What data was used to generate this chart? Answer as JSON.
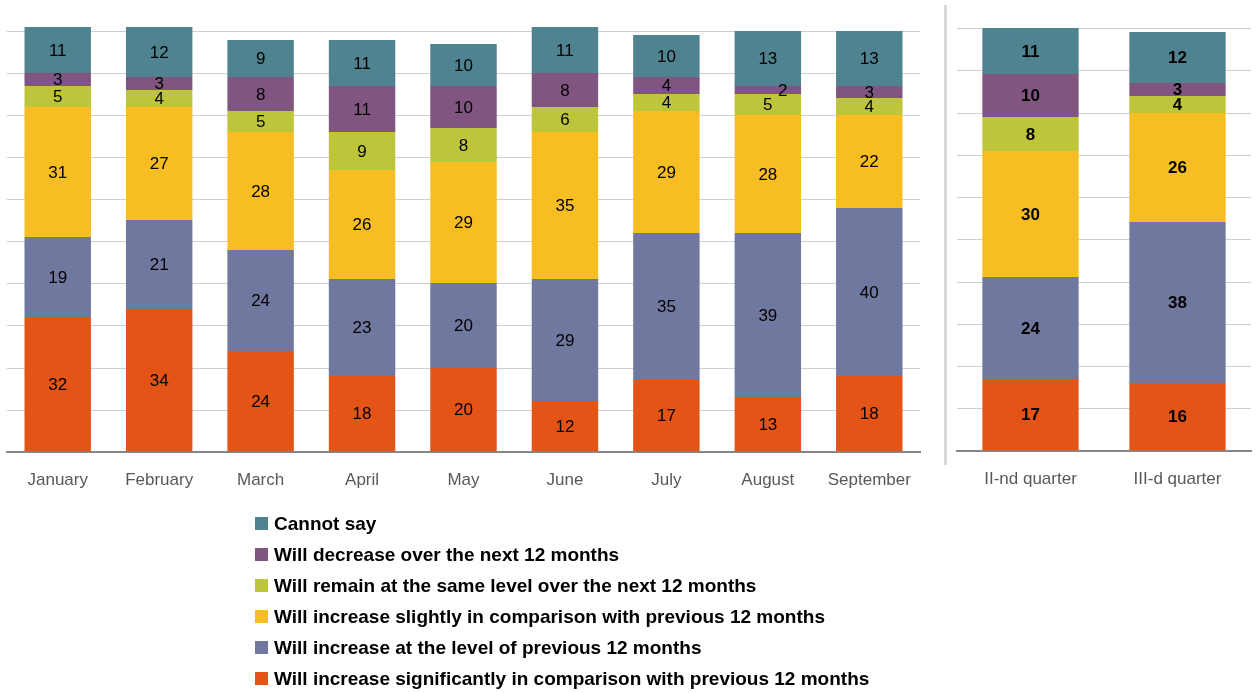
{
  "chart_data": [
    {
      "type": "bar",
      "stacked": true,
      "categories": [
        "January",
        "February",
        "March",
        "April",
        "May",
        "June",
        "July",
        "August",
        "September"
      ],
      "series": [
        {
          "name": "Will increase significantly in comparison with previous 12 months",
          "color": "#e35416",
          "values": [
            32,
            34,
            24,
            18,
            20,
            12,
            17,
            13,
            18
          ]
        },
        {
          "name": "Will increase at the level of previous 12 months",
          "color": "#7078a0",
          "values": [
            19,
            21,
            24,
            23,
            20,
            29,
            35,
            39,
            40
          ]
        },
        {
          "name": "Will increase slightly in comparison with previous 12 months",
          "color": "#f6be22",
          "values": [
            31,
            27,
            28,
            26,
            29,
            35,
            29,
            28,
            22
          ]
        },
        {
          "name": "Will remain at the same level over the next 12 months",
          "color": "#bdc53a",
          "values": [
            5,
            4,
            5,
            9,
            8,
            6,
            4,
            5,
            4
          ]
        },
        {
          "name": "Will decrease over the next 12 months",
          "color": "#805580",
          "values": [
            3,
            3,
            8,
            11,
            10,
            8,
            4,
            2,
            3
          ]
        },
        {
          "name": "Cannot say",
          "color": "#508390",
          "values": [
            11,
            12,
            9,
            11,
            10,
            11,
            10,
            13,
            13
          ]
        }
      ],
      "ylim": [
        0,
        101
      ],
      "yticks": [
        {
          "value": 0,
          "label": null
        },
        {
          "value": 10,
          "label": null
        },
        {
          "value": 20,
          "label": null
        },
        {
          "value": 30,
          "label": null
        },
        {
          "value": 40,
          "label": null
        },
        {
          "value": 50,
          "label": null
        },
        {
          "value": 60,
          "label": null
        },
        {
          "value": 70,
          "label": null
        },
        {
          "value": 80,
          "label": null
        },
        {
          "value": 90,
          "label": null
        },
        {
          "value": 100,
          "label": null
        }
      ],
      "tick_labels": "x",
      "grid": "y",
      "data_labels": true,
      "legend": "bottom"
    },
    {
      "type": "bar",
      "stacked": true,
      "categories": [
        "II-nd quarter",
        "III-d quarter"
      ],
      "series": [
        {
          "color": "#e35416",
          "values": [
            17,
            16
          ]
        },
        {
          "color": "#7078a0",
          "values": [
            24,
            38
          ]
        },
        {
          "color": "#f6be22",
          "values": [
            30,
            26
          ]
        },
        {
          "color": "#bdc53a",
          "values": [
            8,
            4
          ]
        },
        {
          "color": "#805580",
          "values": [
            10,
            3
          ]
        },
        {
          "color": "#508390",
          "values": [
            11,
            12
          ]
        }
      ],
      "ylim": [
        0,
        100
      ],
      "yticks": [
        {
          "value": 0,
          "label": null
        },
        {
          "value": 10,
          "label": null
        },
        {
          "value": 20,
          "label": null
        },
        {
          "value": 30,
          "label": null
        },
        {
          "value": 40,
          "label": null
        },
        {
          "value": 50,
          "label": null
        },
        {
          "value": 60,
          "label": null
        },
        {
          "value": 70,
          "label": null
        },
        {
          "value": 80,
          "label": null
        },
        {
          "value": 90,
          "label": null
        },
        {
          "value": 100,
          "label": null
        }
      ],
      "tick_labels": "x",
      "grid": "y",
      "data_labels": true
    }
  ]
}
